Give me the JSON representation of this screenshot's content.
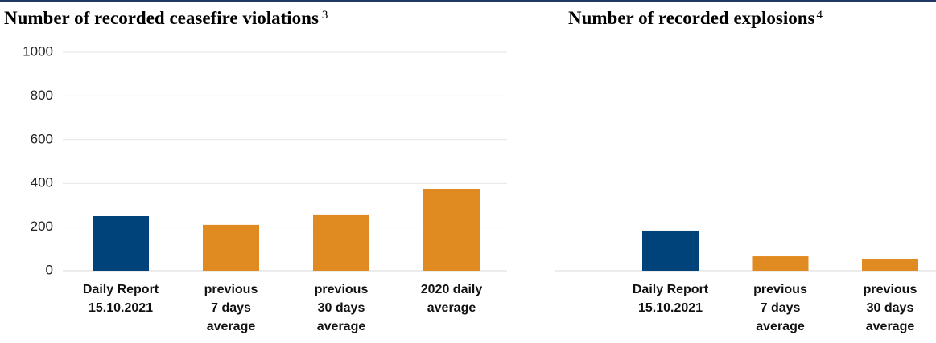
{
  "chart_data": [
    {
      "type": "bar",
      "title": "Number of recorded ceasefire violations",
      "footnote": "3",
      "categories": [
        [
          "Daily Report",
          "15.10.2021"
        ],
        [
          "previous",
          "7 days",
          "average"
        ],
        [
          "previous",
          "30 days",
          "average"
        ],
        [
          "2020 daily",
          "average"
        ]
      ],
      "values": [
        250,
        210,
        254,
        375
      ],
      "colors": [
        "#00427a",
        "#e08a22",
        "#e08a22",
        "#e08a22"
      ],
      "ylim": [
        0,
        1000
      ],
      "yticks": [
        0,
        200,
        400,
        600,
        800,
        1000
      ],
      "grid": true
    },
    {
      "type": "bar",
      "title": "Number of recorded explosions",
      "footnote": "4",
      "categories": [
        [
          "Daily Report",
          "15.10.2021"
        ],
        [
          "previous",
          "7 days",
          "average"
        ],
        [
          "previous",
          "30 days",
          "average"
        ]
      ],
      "values": [
        184,
        66,
        55
      ],
      "colors": [
        "#00427a",
        "#e08a22",
        "#e08a22"
      ],
      "ylim": [
        0,
        1000
      ],
      "grid": false
    }
  ]
}
